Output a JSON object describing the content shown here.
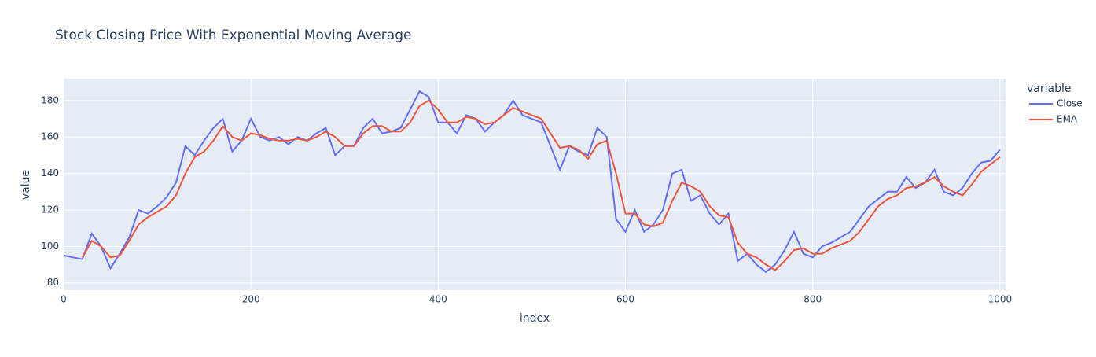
{
  "chart_data": {
    "type": "line",
    "title": "Stock Closing Price With Exponential Moving Average",
    "x_label": "index",
    "y_label": "value",
    "legend_title": "variable",
    "x": [
      0,
      10,
      20,
      30,
      40,
      50,
      60,
      70,
      80,
      90,
      100,
      110,
      120,
      130,
      140,
      150,
      160,
      170,
      180,
      190,
      200,
      210,
      220,
      230,
      240,
      250,
      260,
      270,
      280,
      290,
      300,
      310,
      320,
      330,
      340,
      350,
      360,
      370,
      380,
      390,
      400,
      410,
      420,
      430,
      440,
      450,
      460,
      470,
      480,
      490,
      500,
      510,
      520,
      530,
      540,
      550,
      560,
      570,
      580,
      590,
      600,
      610,
      620,
      630,
      640,
      650,
      660,
      670,
      680,
      690,
      700,
      710,
      720,
      730,
      740,
      750,
      760,
      770,
      780,
      790,
      800,
      810,
      820,
      830,
      840,
      850,
      860,
      870,
      880,
      890,
      900,
      910,
      920,
      930,
      940,
      950,
      960,
      970,
      980,
      990,
      1000
    ],
    "series": [
      {
        "name": "Close",
        "color": "#636efa",
        "values": [
          95,
          94,
          93,
          107,
          100,
          88,
          96,
          105,
          120,
          118,
          122,
          127,
          135,
          155,
          150,
          158,
          165,
          170,
          152,
          158,
          170,
          160,
          158,
          160,
          156,
          160,
          158,
          162,
          165,
          150,
          155,
          155,
          165,
          170,
          162,
          163,
          165,
          175,
          185,
          182,
          168,
          168,
          162,
          172,
          170,
          163,
          168,
          172,
          180,
          172,
          170,
          168,
          155,
          142,
          155,
          152,
          150,
          165,
          160,
          115,
          108,
          120,
          108,
          112,
          120,
          140,
          142,
          125,
          128,
          118,
          112,
          118,
          92,
          96,
          90,
          86,
          90,
          98,
          108,
          96,
          94,
          100,
          102,
          105,
          108,
          115,
          122,
          126,
          130,
          130,
          138,
          132,
          135,
          142,
          130,
          128,
          132,
          140,
          146,
          147,
          153
        ]
      },
      {
        "name": "EMA",
        "color": "#ef553b",
        "values": [
          null,
          null,
          94,
          103,
          100,
          94,
          95,
          103,
          112,
          116,
          119,
          122,
          128,
          140,
          149,
          152,
          158,
          166,
          160,
          158,
          162,
          161,
          159,
          158,
          158,
          159,
          158,
          160,
          163,
          160,
          155,
          155,
          162,
          166,
          166,
          163,
          163,
          168,
          177,
          180,
          175,
          168,
          168,
          171,
          170,
          167,
          168,
          172,
          176,
          174,
          172,
          170,
          162,
          154,
          155,
          153,
          148,
          156,
          158,
          140,
          118,
          118,
          112,
          111,
          113,
          125,
          135,
          133,
          130,
          122,
          117,
          116,
          102,
          96,
          94,
          90,
          87,
          92,
          98,
          99,
          96,
          96,
          99,
          101,
          103,
          108,
          115,
          122,
          126,
          128,
          132,
          133,
          135,
          138,
          133,
          130,
          128,
          134,
          141,
          145,
          149
        ]
      }
    ],
    "xlim": [
      0,
      1006
    ],
    "ylim": [
      76,
      192
    ],
    "xticks": [
      0,
      200,
      400,
      600,
      800,
      1000
    ],
    "yticks": [
      80,
      100,
      120,
      140,
      160,
      180
    ],
    "grid": true
  }
}
